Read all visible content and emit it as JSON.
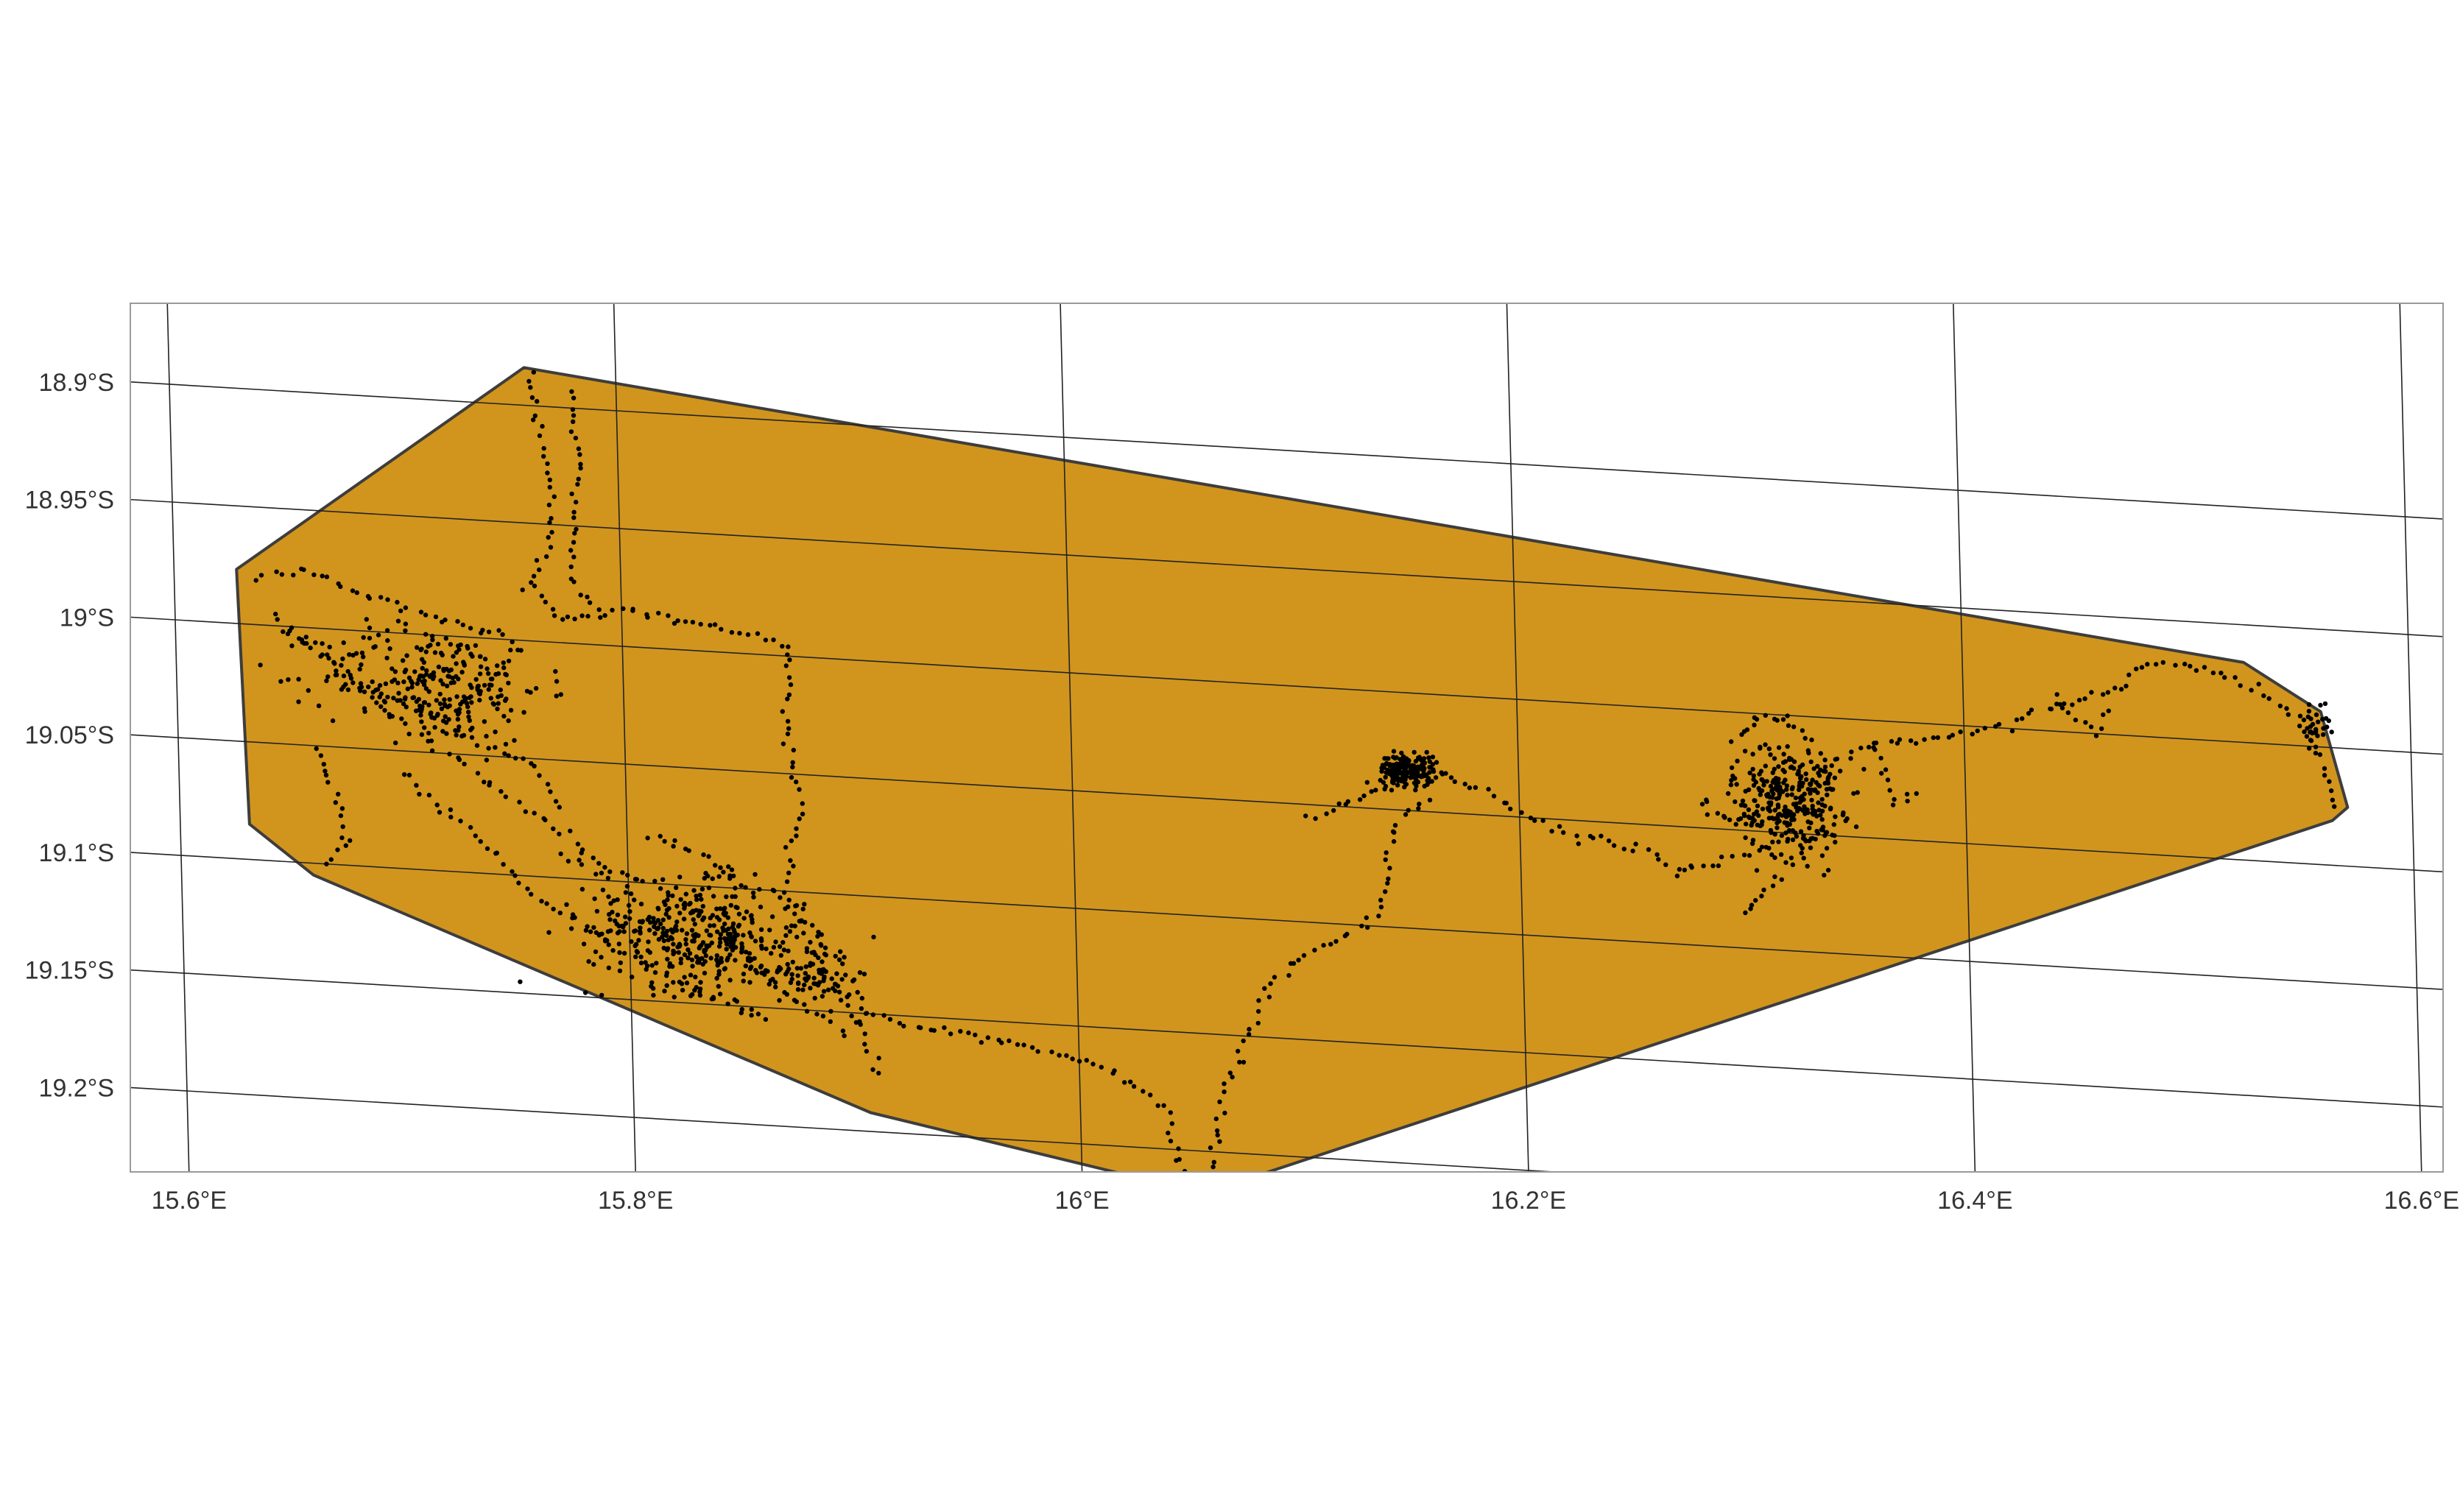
{
  "map": {
    "projection_note": "",
    "extent": {
      "lon": [
        15.582,
        16.618
      ],
      "lat": [
        -19.234,
        -18.868
      ]
    },
    "x_ticks": [
      {
        "lon": 15.6,
        "label": "15.6°E"
      },
      {
        "lon": 15.8,
        "label": "15.8°E"
      },
      {
        "lon": 16.0,
        "label": "16°E"
      },
      {
        "lon": 16.2,
        "label": "16.2°E"
      },
      {
        "lon": 16.4,
        "label": "16.4°E"
      },
      {
        "lon": 16.6,
        "label": "16.6°E"
      }
    ],
    "y_ticks": [
      {
        "lat": -18.9,
        "label": "18.9°S"
      },
      {
        "lat": -18.95,
        "label": "18.95°S"
      },
      {
        "lat": -19.0,
        "label": "19°S"
      },
      {
        "lat": -19.05,
        "label": "19.05°S"
      },
      {
        "lat": -19.1,
        "label": "19.1°S"
      },
      {
        "lat": -19.15,
        "label": "19.15°S"
      },
      {
        "lat": -19.2,
        "label": "19.2°S"
      }
    ],
    "colors": {
      "hull_fill": "#D1951D",
      "hull_stroke": "#3d3d3d",
      "points": "#000000",
      "graticule": "#222222",
      "panel_border": "#9a9a9a"
    },
    "hull_polygon": [
      [
        15.759,
        -18.884
      ],
      [
        15.628,
        -18.977
      ],
      [
        15.631,
        -19.085
      ],
      [
        15.659,
        -19.105
      ],
      [
        15.906,
        -19.192
      ],
      [
        16.054,
        -19.218
      ],
      [
        16.564,
        -19.031
      ],
      [
        16.571,
        -19.025
      ],
      [
        16.56,
        -18.985
      ],
      [
        16.526,
        -18.966
      ],
      [
        15.759,
        -18.884
      ]
    ],
    "gps_tracks": [
      {
        "name": "",
        "points": [
          [
            15.76,
            -18.885
          ],
          [
            15.765,
            -18.91
          ],
          [
            15.77,
            -18.935
          ],
          [
            15.768,
            -18.96
          ],
          [
            15.76,
            -18.975
          ],
          [
            15.77,
            -18.99
          ],
          [
            15.8,
            -18.985
          ],
          [
            15.83,
            -18.988
          ],
          [
            15.86,
            -18.992
          ],
          [
            15.875,
            -18.995
          ],
          [
            15.872,
            -19.03
          ],
          [
            15.878,
            -19.065
          ],
          [
            15.87,
            -19.1
          ],
          [
            15.885,
            -19.13
          ],
          [
            15.9,
            -19.15
          ],
          [
            15.91,
            -19.175
          ]
        ]
      },
      {
        "name": "",
        "points": [
          [
            15.78,
            -18.893
          ],
          [
            15.782,
            -18.92
          ],
          [
            15.78,
            -18.95
          ],
          [
            15.778,
            -18.975
          ],
          [
            15.79,
            -18.985
          ]
        ]
      },
      {
        "name": "",
        "points": [
          [
            15.638,
            -18.98
          ],
          [
            15.66,
            -18.975
          ],
          [
            15.685,
            -18.985
          ],
          [
            15.705,
            -18.99
          ],
          [
            15.73,
            -18.995
          ],
          [
            15.755,
            -19.0
          ],
          [
            15.74,
            -19.02
          ],
          [
            15.72,
            -19.035
          ],
          [
            15.7,
            -19.03
          ],
          [
            15.68,
            -19.02
          ],
          [
            15.66,
            -19.01
          ],
          [
            15.645,
            -18.995
          ]
        ]
      },
      {
        "name": "",
        "points": [
          [
            15.65,
            -19.0
          ],
          [
            15.67,
            -19.015
          ],
          [
            15.69,
            -19.03
          ],
          [
            15.71,
            -19.045
          ],
          [
            15.73,
            -19.055
          ],
          [
            15.75,
            -19.07
          ],
          [
            15.77,
            -19.08
          ],
          [
            15.79,
            -19.095
          ],
          [
            15.81,
            -19.1
          ],
          [
            15.83,
            -19.11
          ],
          [
            15.85,
            -19.125
          ],
          [
            15.865,
            -19.14
          ],
          [
            15.88,
            -19.15
          ],
          [
            15.895,
            -19.16
          ]
        ]
      },
      {
        "name": "",
        "points": [
          [
            15.7,
            -19.06
          ],
          [
            15.72,
            -19.075
          ],
          [
            15.74,
            -19.09
          ],
          [
            15.76,
            -19.11
          ],
          [
            15.78,
            -19.12
          ],
          [
            15.8,
            -19.13
          ],
          [
            15.82,
            -19.14
          ],
          [
            15.845,
            -19.15
          ],
          [
            15.86,
            -19.155
          ]
        ]
      },
      {
        "name": "",
        "points": [
          [
            15.66,
            -19.05
          ],
          [
            15.67,
            -19.07
          ],
          [
            15.675,
            -19.09
          ],
          [
            15.665,
            -19.1
          ]
        ]
      },
      {
        "name": "",
        "points": [
          [
            15.77,
            -19.09
          ],
          [
            15.79,
            -19.1
          ],
          [
            15.795,
            -19.12
          ],
          [
            15.81,
            -19.115
          ],
          [
            15.83,
            -19.105
          ],
          [
            15.845,
            -19.09
          ],
          [
            15.85,
            -19.115
          ],
          [
            15.84,
            -19.13
          ],
          [
            15.82,
            -19.125
          ],
          [
            15.8,
            -19.11
          ]
        ]
      },
      {
        "name": "",
        "points": [
          [
            15.81,
            -19.08
          ],
          [
            15.83,
            -19.085
          ],
          [
            15.845,
            -19.095
          ],
          [
            15.86,
            -19.1
          ],
          [
            15.875,
            -19.11
          ],
          [
            15.89,
            -19.125
          ],
          [
            15.9,
            -19.135
          ],
          [
            15.905,
            -19.15
          ]
        ]
      },
      {
        "name": "",
        "points": [
          [
            15.72,
            -19.04
          ],
          [
            15.735,
            -19.045
          ],
          [
            15.755,
            -19.05
          ],
          [
            15.765,
            -19.06
          ],
          [
            15.77,
            -19.07
          ]
        ]
      },
      {
        "name": "",
        "points": [
          [
            15.905,
            -19.15
          ],
          [
            15.93,
            -19.155
          ],
          [
            15.96,
            -19.158
          ],
          [
            15.99,
            -19.162
          ],
          [
            16.02,
            -19.17
          ],
          [
            16.04,
            -19.185
          ],
          [
            16.045,
            -19.21
          ],
          [
            16.055,
            -19.215
          ],
          [
            16.06,
            -19.2
          ],
          [
            16.065,
            -19.175
          ],
          [
            16.075,
            -19.15
          ],
          [
            16.085,
            -19.13
          ],
          [
            16.1,
            -19.115
          ],
          [
            16.12,
            -19.105
          ],
          [
            16.135,
            -19.095
          ],
          [
            16.14,
            -19.075
          ],
          [
            16.145,
            -19.055
          ],
          [
            16.16,
            -19.045
          ]
        ]
      },
      {
        "name": "",
        "points": [
          [
            16.105,
            -19.055
          ],
          [
            16.125,
            -19.048
          ],
          [
            16.14,
            -19.04
          ],
          [
            16.15,
            -19.03
          ],
          [
            16.16,
            -19.028
          ],
          [
            16.17,
            -19.035
          ],
          [
            16.185,
            -19.04
          ],
          [
            16.195,
            -19.045
          ],
          [
            16.205,
            -19.05
          ],
          [
            16.22,
            -19.055
          ],
          [
            16.24,
            -19.058
          ],
          [
            16.26,
            -19.062
          ],
          [
            16.27,
            -19.07
          ],
          [
            16.285,
            -19.065
          ],
          [
            16.3,
            -19.062
          ],
          [
            16.31,
            -19.055
          ],
          [
            16.32,
            -19.045
          ],
          [
            16.33,
            -19.03
          ],
          [
            16.34,
            -19.02
          ],
          [
            16.355,
            -19.012
          ],
          [
            16.375,
            -19.008
          ],
          [
            16.395,
            -19.005
          ],
          [
            16.42,
            -18.998
          ],
          [
            16.44,
            -18.99
          ],
          [
            16.455,
            -18.985
          ],
          [
            16.47,
            -18.98
          ],
          [
            16.48,
            -18.97
          ],
          [
            16.495,
            -18.968
          ],
          [
            16.515,
            -18.972
          ],
          [
            16.535,
            -18.978
          ],
          [
            16.55,
            -18.99
          ],
          [
            16.56,
            -19.005
          ],
          [
            16.565,
            -19.025
          ]
        ]
      },
      {
        "name": "",
        "points": [
          [
            16.3,
            -19.01
          ],
          [
            16.31,
            -19.0
          ],
          [
            16.325,
            -19.005
          ],
          [
            16.335,
            -19.015
          ],
          [
            16.34,
            -19.03
          ],
          [
            16.335,
            -19.045
          ],
          [
            16.325,
            -19.06
          ],
          [
            16.315,
            -19.07
          ],
          [
            16.305,
            -19.08
          ],
          [
            16.3,
            -19.085
          ]
        ]
      },
      {
        "name": "",
        "points": [
          [
            16.28,
            -19.04
          ],
          [
            16.295,
            -19.045
          ],
          [
            16.31,
            -19.05
          ],
          [
            16.325,
            -19.055
          ],
          [
            16.34,
            -19.05
          ],
          [
            16.345,
            -19.04
          ]
        ]
      },
      {
        "name": "",
        "points": [
          [
            16.36,
            -19.01
          ],
          [
            16.365,
            -19.025
          ],
          [
            16.37,
            -19.035
          ],
          [
            16.378,
            -19.03
          ]
        ]
      },
      {
        "name": "",
        "points": [
          [
            16.44,
            -18.985
          ],
          [
            16.45,
            -18.995
          ],
          [
            16.46,
            -19.0
          ],
          [
            16.465,
            -18.99
          ]
        ]
      }
    ],
    "dense_clusters": [
      {
        "name": "",
        "center": [
          15.715,
          -19.02
        ],
        "spread": [
          0.045,
          0.022
        ],
        "count": 260
      },
      {
        "name": "",
        "center": [
          15.83,
          -19.122
        ],
        "spread": [
          0.045,
          0.02
        ],
        "count": 340
      },
      {
        "name": "",
        "center": [
          15.88,
          -19.135
        ],
        "spread": [
          0.018,
          0.012
        ],
        "count": 80
      },
      {
        "name": "",
        "center": [
          16.15,
          -19.033
        ],
        "spread": [
          0.011,
          0.006
        ],
        "count": 190
      },
      {
        "name": "",
        "center": [
          16.32,
          -19.035
        ],
        "spread": [
          0.022,
          0.022
        ],
        "count": 280
      },
      {
        "name": "",
        "center": [
          16.557,
          -18.99
        ],
        "spread": [
          0.006,
          0.008
        ],
        "count": 30
      }
    ]
  }
}
